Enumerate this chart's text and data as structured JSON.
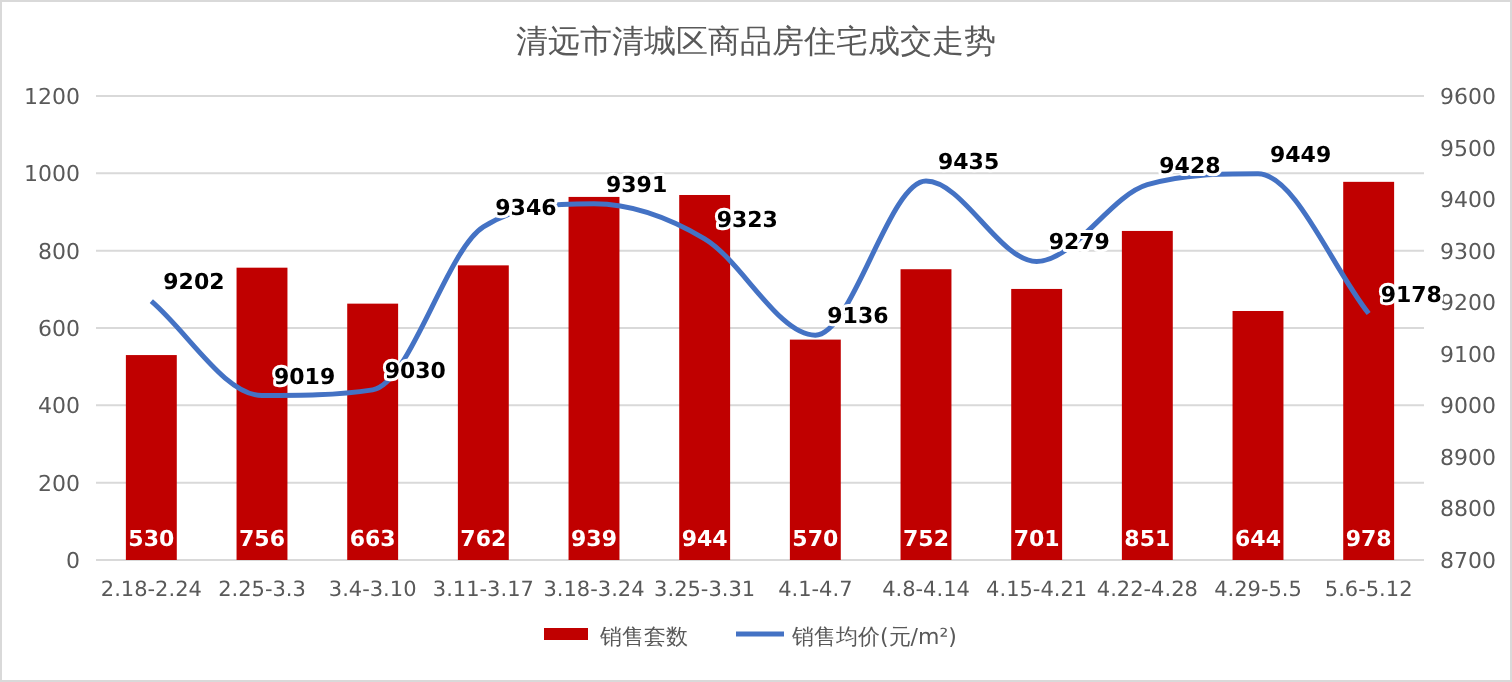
{
  "chart_data": {
    "type": "bar",
    "title": "清远市清城区商品房住宅成交走势",
    "categories": [
      "2.18-2.24",
      "2.25-3.3",
      "3.4-3.10",
      "3.11-3.17",
      "3.18-3.24",
      "3.25-3.31",
      "4.1-4.7",
      "4.8-4.14",
      "4.15-4.21",
      "4.22-4.28",
      "4.29-5.5",
      "5.6-5.12"
    ],
    "series": [
      {
        "name": "销售套数",
        "color": "#c00000",
        "values": [
          530,
          756,
          663,
          762,
          939,
          944,
          570,
          752,
          701,
          851,
          644,
          978
        ]
      },
      {
        "name": "销售均价(元/m²)",
        "type": "line",
        "axis": "y2",
        "color": "#4472c4",
        "values": [
          9202,
          9019,
          9030,
          9346,
          9391,
          9323,
          9136,
          9435,
          9279,
          9428,
          9449,
          9178
        ]
      }
    ],
    "ylim": [
      0,
      1200
    ],
    "yticks": [
      0,
      200,
      400,
      600,
      800,
      1000,
      1200
    ],
    "y2lim": [
      8700,
      9600
    ],
    "y2ticks": [
      8700,
      8800,
      8900,
      9000,
      9100,
      9200,
      9300,
      9400,
      9500,
      9600
    ],
    "grid": "y",
    "legend": "bottom",
    "data_labels": true
  }
}
